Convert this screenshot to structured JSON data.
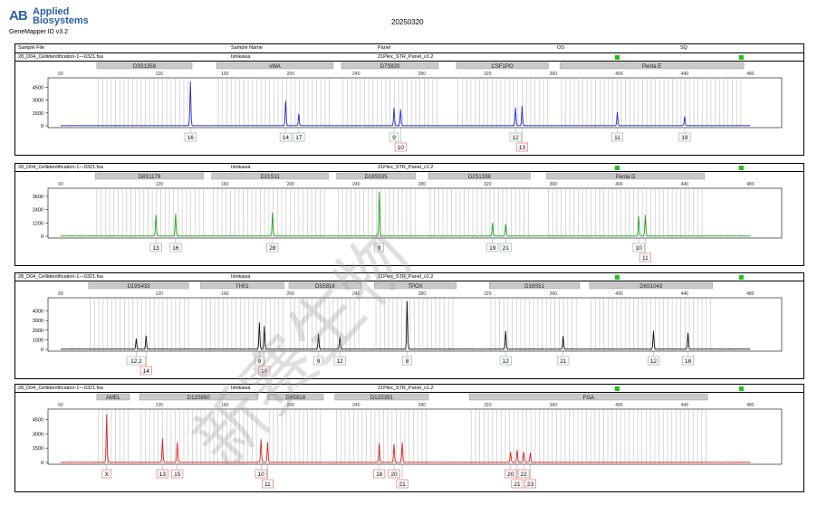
{
  "header": {
    "logo_mark": "AB",
    "brand_line1": "Applied",
    "brand_line2": "Biosystems",
    "app_name": "GeneMapper ID v3.2",
    "run_date": "20250320"
  },
  "columns": {
    "sample_file": "Sample File",
    "sample_name": "Sample Name",
    "panel": "Panel",
    "os": "OS",
    "sq": "SQ"
  },
  "colors": {
    "blue": "#1f2bd4",
    "green": "#1fa21f",
    "black": "#111111",
    "red": "#e02020",
    "flag": "#1ec31e",
    "locus_box": "#c9c9c9",
    "bin_line": "#c8c8c8"
  },
  "watermark": "新赛生物",
  "panels": [
    {
      "dye": "blue",
      "file": "28_D04_Cellidentification-1—0321.fsa",
      "sample": "Ishikawa",
      "panel": "21Plex_STR_Panel_v1.2",
      "chart_data": {
        "type": "line",
        "x_ticks": [
          "60",
          "120",
          "160",
          "200",
          "240",
          "280",
          "320",
          "360",
          "400",
          "440",
          "480"
        ],
        "y_ticks": [
          "4500",
          "3000",
          "1500",
          "0"
        ],
        "ylim": [
          0,
          5200
        ],
        "xlim": [
          60,
          480
        ],
        "loci": [
          {
            "name": "D3S1358",
            "start": 82,
            "end": 140
          },
          {
            "name": "vWA",
            "start": 155,
            "end": 226
          },
          {
            "name": "D7S820",
            "start": 231,
            "end": 290
          },
          {
            "name": "CSF1PO",
            "start": 301,
            "end": 357
          },
          {
            "name": "Penta E",
            "start": 364,
            "end": 476
          }
        ],
        "peaks": [
          {
            "x": 139,
            "height": 5200,
            "label": "16",
            "row": 1
          },
          {
            "x": 197,
            "height": 2900,
            "label": "14",
            "row": 1
          },
          {
            "x": 205,
            "height": 1400,
            "label": "17",
            "row": 1
          },
          {
            "x": 263,
            "height": 2100,
            "label": "9",
            "row": 1
          },
          {
            "x": 267,
            "height": 1900,
            "label": "10",
            "row": 2
          },
          {
            "x": 337,
            "height": 2100,
            "label": "12",
            "row": 1
          },
          {
            "x": 341,
            "height": 2300,
            "label": "13",
            "row": 2
          },
          {
            "x": 399,
            "height": 1600,
            "label": "11",
            "row": 1
          },
          {
            "x": 440,
            "height": 1100,
            "label": "19",
            "row": 1
          }
        ]
      }
    },
    {
      "dye": "green",
      "file": "28_D04_Cellidentification-1—0321.fsa",
      "sample": "Ishikawa",
      "panel": "21Plex_STR_Panel_v1.2",
      "chart_data": {
        "type": "line",
        "x_ticks": [
          "60",
          "120",
          "160",
          "200",
          "240",
          "280",
          "320",
          "360",
          "400",
          "440",
          "480"
        ],
        "y_ticks": [
          "3600",
          "2400",
          "1200",
          "0"
        ],
        "ylim": [
          0,
          4000
        ],
        "xlim": [
          60,
          480
        ],
        "loci": [
          {
            "name": "D8S1179",
            "start": 81,
            "end": 147
          },
          {
            "name": "D21S11",
            "start": 152,
            "end": 223
          },
          {
            "name": "D18S535",
            "start": 228,
            "end": 276
          },
          {
            "name": "D2S1338",
            "start": 284,
            "end": 346
          },
          {
            "name": "Penta D",
            "start": 356,
            "end": 452
          }
        ],
        "peaks": [
          {
            "x": 118,
            "height": 1900,
            "label": "13",
            "row": 1
          },
          {
            "x": 130,
            "height": 2000,
            "label": "16",
            "row": 1
          },
          {
            "x": 189,
            "height": 2100,
            "label": "28",
            "row": 1
          },
          {
            "x": 254,
            "height": 4000,
            "label": "9",
            "row": 1
          },
          {
            "x": 323,
            "height": 1200,
            "label": "19",
            "row": 1
          },
          {
            "x": 331,
            "height": 1100,
            "label": "21",
            "row": 1
          },
          {
            "x": 412,
            "height": 1800,
            "label": "10",
            "row": 1
          },
          {
            "x": 416,
            "height": 1900,
            "label": "11",
            "row": 2
          }
        ]
      }
    },
    {
      "dye": "black",
      "file": "28_D04_Cellidentification-1—0321.fsa",
      "sample": "Ishikawa",
      "panel": "21Plex_STR_Panel_v1.2",
      "chart_data": {
        "type": "line",
        "x_ticks": [
          "60",
          "120",
          "160",
          "200",
          "240",
          "280",
          "320",
          "360",
          "400",
          "440",
          "480"
        ],
        "y_ticks": [
          "4000",
          "3000",
          "2000",
          "1000",
          "0"
        ],
        "ylim": [
          0,
          5000
        ],
        "xlim": [
          60,
          480
        ],
        "loci": [
          {
            "name": "D19S433",
            "start": 77,
            "end": 138
          },
          {
            "name": "TH01",
            "start": 145,
            "end": 196
          },
          {
            "name": "D5S818",
            "start": 199,
            "end": 243
          },
          {
            "name": "TPOX",
            "start": 251,
            "end": 301
          },
          {
            "name": "D16S51",
            "start": 321,
            "end": 376
          },
          {
            "name": "D6S1043",
            "start": 382,
            "end": 457
          }
        ],
        "peaks": [
          {
            "x": 106,
            "height": 1100,
            "label": "12.2",
            "row": 1
          },
          {
            "x": 112,
            "height": 1400,
            "label": "14",
            "row": 2
          },
          {
            "x": 181,
            "height": 2800,
            "label": "9",
            "row": 1
          },
          {
            "x": 184,
            "height": 2400,
            "label": "10",
            "row": 2
          },
          {
            "x": 217,
            "height": 1600,
            "label": "9",
            "row": 1
          },
          {
            "x": 230,
            "height": 1300,
            "label": "12",
            "row": 1
          },
          {
            "x": 271,
            "height": 5000,
            "label": "8",
            "row": 1
          },
          {
            "x": 331,
            "height": 1900,
            "label": "12",
            "row": 1
          },
          {
            "x": 366,
            "height": 1400,
            "label": "21",
            "row": 1
          },
          {
            "x": 421,
            "height": 1900,
            "label": "12",
            "row": 1
          },
          {
            "x": 442,
            "height": 1700,
            "label": "18",
            "row": 1
          }
        ]
      }
    },
    {
      "dye": "red",
      "file": "28_D04_Cellidentification-1—0321.fsa",
      "sample": "Ishikawa",
      "panel": "21Plex_STR_Panel_v1.2",
      "chart_data": {
        "type": "line",
        "x_ticks": [
          "60",
          "120",
          "160",
          "200",
          "240",
          "280",
          "320",
          "360",
          "400",
          "440",
          "480"
        ],
        "y_ticks": [
          "4500",
          "3000",
          "1500",
          "0"
        ],
        "ylim": [
          0,
          5200
        ],
        "xlim": [
          60,
          480
        ],
        "loci": [
          {
            "name": "AMEL",
            "start": 82,
            "end": 102
          },
          {
            "name": "D13S650",
            "start": 108,
            "end": 180
          },
          {
            "name": "D6S818",
            "start": 186,
            "end": 220
          },
          {
            "name": "D12S391",
            "start": 227,
            "end": 284
          },
          {
            "name": "FGA",
            "start": 309,
            "end": 454
          }
        ],
        "peaks": [
          {
            "x": 88,
            "height": 5000,
            "label": "X",
            "row": 1
          },
          {
            "x": 122,
            "height": 2500,
            "label": "13",
            "row": 1
          },
          {
            "x": 131,
            "height": 2100,
            "label": "15",
            "row": 1
          },
          {
            "x": 182,
            "height": 2400,
            "label": "10",
            "row": 1
          },
          {
            "x": 186,
            "height": 2100,
            "label": "11",
            "row": 2
          },
          {
            "x": 254,
            "height": 2000,
            "label": "18",
            "row": 1
          },
          {
            "x": 263,
            "height": 1900,
            "label": "20",
            "row": 1
          },
          {
            "x": 268,
            "height": 2100,
            "label": "21",
            "row": 2
          },
          {
            "x": 334,
            "height": 1100,
            "label": "20",
            "row": 1
          },
          {
            "x": 338,
            "height": 1300,
            "label": "21",
            "row": 2
          },
          {
            "x": 342,
            "height": 1100,
            "label": "22",
            "row": 1
          },
          {
            "x": 346,
            "height": 1000,
            "label": "23",
            "row": 2
          }
        ]
      }
    }
  ]
}
